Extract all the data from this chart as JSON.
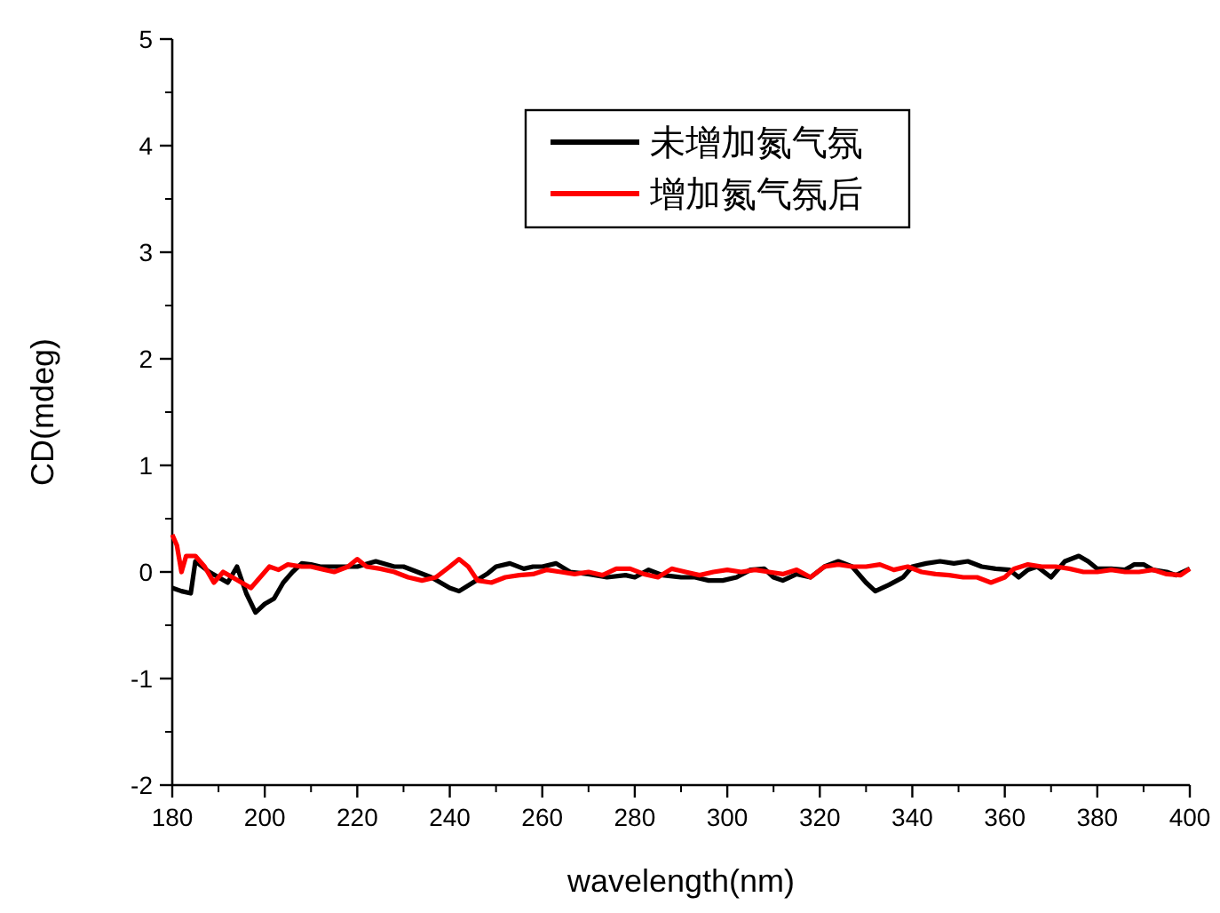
{
  "chart_data": {
    "type": "line",
    "xlabel": "wavelength(nm)",
    "ylabel": "CD(mdeg)",
    "xlim": [
      180,
      400
    ],
    "ylim": [
      -2,
      5
    ],
    "xticks": [
      180,
      200,
      220,
      240,
      260,
      280,
      300,
      320,
      340,
      360,
      380,
      400
    ],
    "yticks": [
      -2,
      -1,
      0,
      1,
      2,
      3,
      4,
      5
    ],
    "grid": false,
    "legend": "top",
    "marker": "none",
    "line_style": "solid",
    "series": [
      {
        "name": "未增加氮气氛",
        "color": "#000000",
        "x": [
          180,
          182,
          184,
          185,
          188,
          190,
          192,
          194,
          196,
          198,
          200,
          202,
          204,
          206,
          208,
          210,
          212,
          215,
          220,
          224,
          228,
          230,
          233,
          236,
          240,
          242,
          245,
          248,
          250,
          253,
          256,
          258,
          260,
          263,
          266,
          270,
          274,
          278,
          280,
          283,
          286,
          290,
          293,
          296,
          299,
          302,
          305,
          308,
          310,
          312,
          315,
          318,
          321,
          324,
          327,
          330,
          332,
          335,
          338,
          340,
          343,
          346,
          349,
          352,
          355,
          358,
          361,
          363,
          365,
          367,
          370,
          373,
          376,
          378,
          380,
          383,
          386,
          388,
          390,
          392,
          395,
          397,
          400
        ],
        "values": [
          -0.15,
          -0.18,
          -0.2,
          0.1,
          0.0,
          -0.05,
          -0.1,
          0.05,
          -0.2,
          -0.38,
          -0.3,
          -0.25,
          -0.1,
          0,
          0.08,
          0.07,
          0.05,
          0.05,
          0.05,
          0.1,
          0.05,
          0.05,
          0.0,
          -0.05,
          -0.15,
          -0.18,
          -0.1,
          -0.02,
          0.05,
          0.08,
          0.03,
          0.05,
          0.05,
          0.08,
          0.0,
          -0.02,
          -0.05,
          -0.03,
          -0.05,
          0.02,
          -0.03,
          -0.05,
          -0.05,
          -0.08,
          -0.08,
          -0.05,
          0.02,
          0.03,
          -0.05,
          -0.08,
          -0.02,
          -0.05,
          0.05,
          0.1,
          0.05,
          -0.1,
          -0.18,
          -0.12,
          -0.05,
          0.05,
          0.08,
          0.1,
          0.08,
          0.1,
          0.05,
          0.03,
          0.02,
          -0.05,
          0.02,
          0.05,
          -0.05,
          0.1,
          0.15,
          0.1,
          0.03,
          0.03,
          0.02,
          0.07,
          0.07,
          0.02,
          0.0,
          -0.03,
          0.03
        ]
      },
      {
        "name": "增加氮气氛后",
        "color": "#ff0000",
        "x": [
          180,
          181,
          182,
          183,
          185,
          187,
          189,
          191,
          193,
          195,
          197,
          199,
          201,
          203,
          205,
          208,
          210,
          212,
          215,
          218,
          220,
          222,
          225,
          228,
          231,
          234,
          237,
          240,
          242,
          244,
          246,
          249,
          252,
          255,
          258,
          261,
          264,
          267,
          270,
          273,
          276,
          279,
          282,
          285,
          288,
          291,
          294,
          297,
          300,
          303,
          306,
          309,
          312,
          315,
          318,
          321,
          324,
          327,
          330,
          333,
          336,
          339,
          342,
          345,
          348,
          351,
          354,
          357,
          360,
          362,
          365,
          368,
          371,
          374,
          377,
          380,
          383,
          386,
          389,
          392,
          395,
          398,
          400
        ],
        "values": [
          0.35,
          0.25,
          0.0,
          0.15,
          0.15,
          0.05,
          -0.1,
          0.0,
          -0.05,
          -0.1,
          -0.15,
          -0.05,
          0.05,
          0.02,
          0.07,
          0.05,
          0.05,
          0.03,
          0.0,
          0.05,
          0.12,
          0.05,
          0.03,
          0.0,
          -0.05,
          -0.08,
          -0.05,
          0.05,
          0.12,
          0.05,
          -0.08,
          -0.1,
          -0.05,
          -0.03,
          -0.02,
          0.02,
          0.0,
          -0.02,
          0.0,
          -0.03,
          0.03,
          0.03,
          -0.02,
          -0.05,
          0.03,
          0.0,
          -0.03,
          0.0,
          0.02,
          0.0,
          0.02,
          0.0,
          -0.02,
          0.02,
          -0.05,
          0.05,
          0.07,
          0.05,
          0.05,
          0.07,
          0.02,
          0.05,
          0.0,
          -0.02,
          -0.03,
          -0.05,
          -0.05,
          -0.1,
          -0.05,
          0.03,
          0.07,
          0.05,
          0.05,
          0.03,
          0.0,
          0.0,
          0.02,
          0.0,
          0.0,
          0.02,
          -0.02,
          -0.03,
          0.03
        ]
      }
    ]
  }
}
